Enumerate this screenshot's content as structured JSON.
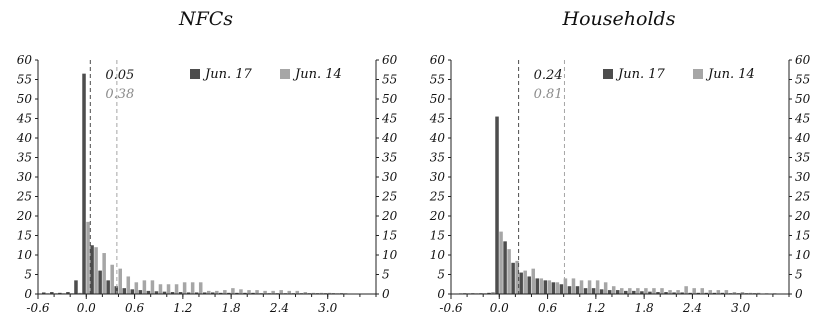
{
  "chart_data": [
    {
      "type": "bar",
      "title": "NFCs",
      "xlim": [
        -0.6,
        3.6
      ],
      "ylim": [
        0,
        60
      ],
      "xticks": [
        "-0.6",
        "0.0",
        "0.6",
        "1.2",
        "1.8",
        "2.4",
        "3.0"
      ],
      "yticks": [
        "0",
        "5",
        "10",
        "15",
        "20",
        "25",
        "30",
        "35",
        "40",
        "45",
        "50",
        "55",
        "60"
      ],
      "bin_width": 0.1,
      "colors": {
        "Jun. 17": "#4d4d4d",
        "Jun. 14": "#a6a6a6"
      },
      "legend_position": "top-right",
      "vlines": [
        {
          "x": 0.05,
          "label": "0.05",
          "series": "Jun. 17"
        },
        {
          "x": 0.38,
          "label": "0.38",
          "series": "Jun. 14"
        }
      ],
      "series": [
        {
          "name": "Jun. 17",
          "x": [
            -0.5,
            -0.4,
            -0.3,
            -0.2,
            -0.1,
            0.0,
            0.1,
            0.2,
            0.3,
            0.4,
            0.5,
            0.6,
            0.7,
            0.8,
            0.9,
            1.0,
            1.1,
            1.2,
            1.3,
            1.4,
            1.5,
            1.6,
            1.7,
            1.8,
            1.9,
            2.0,
            2.1,
            2.2,
            2.3,
            2.4,
            2.5,
            2.6,
            2.7,
            2.8,
            2.9,
            3.0,
            3.1,
            3.2,
            3.3,
            3.4
          ],
          "values": [
            0.4,
            0.5,
            0.3,
            0.5,
            3.5,
            56.5,
            12.5,
            6.0,
            3.5,
            2.0,
            1.5,
            1.2,
            1.0,
            0.8,
            0.7,
            0.6,
            0.5,
            0.5,
            0.4,
            0.4,
            0.4,
            0.4,
            0.3,
            0.3,
            0.3,
            0.3,
            0.3,
            0.2,
            0.2,
            0.2,
            0.2,
            0.2,
            0.2,
            0.2,
            0.2,
            0.2,
            0.2,
            0.2,
            0.1,
            0.1
          ]
        },
        {
          "name": "Jun. 14",
          "x": [
            -0.5,
            -0.4,
            -0.3,
            -0.2,
            -0.1,
            0.0,
            0.1,
            0.2,
            0.3,
            0.4,
            0.5,
            0.6,
            0.7,
            0.8,
            0.9,
            1.0,
            1.1,
            1.2,
            1.3,
            1.4,
            1.5,
            1.6,
            1.7,
            1.8,
            1.9,
            2.0,
            2.1,
            2.2,
            2.3,
            2.4,
            2.5,
            2.6,
            2.7,
            2.8,
            2.9,
            3.0,
            3.1,
            3.2,
            3.3,
            3.4
          ],
          "values": [
            0.2,
            0.2,
            0.2,
            0.2,
            0.3,
            18.5,
            12.0,
            10.5,
            7.5,
            6.5,
            4.5,
            3.0,
            3.5,
            3.5,
            2.5,
            2.5,
            2.5,
            3.0,
            3.0,
            3.0,
            0.8,
            0.8,
            1.0,
            1.5,
            1.2,
            1.0,
            1.0,
            0.8,
            0.8,
            1.0,
            0.8,
            0.8,
            0.5,
            0.3,
            0.3,
            0.3,
            0.2,
            0.2,
            0.1,
            0.1
          ]
        }
      ]
    },
    {
      "type": "bar",
      "title": "Households",
      "xlim": [
        -0.6,
        3.6
      ],
      "ylim": [
        0,
        60
      ],
      "xticks": [
        "-0.6",
        "0.0",
        "0.6",
        "1.2",
        "1.8",
        "2.4",
        "3.0"
      ],
      "yticks": [
        "0",
        "5",
        "10",
        "15",
        "20",
        "25",
        "30",
        "35",
        "40",
        "45",
        "50",
        "55",
        "60"
      ],
      "bin_width": 0.1,
      "colors": {
        "Jun. 17": "#4d4d4d",
        "Jun. 14": "#a6a6a6"
      },
      "legend_position": "top-right",
      "vlines": [
        {
          "x": 0.24,
          "label": "0.24",
          "series": "Jun. 17"
        },
        {
          "x": 0.81,
          "label": "0.81",
          "series": "Jun. 14"
        }
      ],
      "series": [
        {
          "name": "Jun. 17",
          "x": [
            -0.5,
            -0.4,
            -0.3,
            -0.2,
            -0.1,
            0.0,
            0.1,
            0.2,
            0.3,
            0.4,
            0.5,
            0.6,
            0.7,
            0.8,
            0.9,
            1.0,
            1.1,
            1.2,
            1.3,
            1.4,
            1.5,
            1.6,
            1.7,
            1.8,
            1.9,
            2.0,
            2.1,
            2.2,
            2.3,
            2.4,
            2.5,
            2.6,
            2.7,
            2.8,
            2.9,
            3.0,
            3.1,
            3.2,
            3.3,
            3.4
          ],
          "values": [
            0.1,
            0.2,
            0.2,
            0.2,
            0.3,
            45.5,
            13.5,
            8.0,
            5.5,
            4.5,
            4.0,
            3.5,
            3.0,
            2.5,
            2.0,
            2.0,
            1.5,
            1.5,
            1.2,
            1.0,
            1.0,
            0.8,
            0.8,
            0.7,
            0.6,
            0.5,
            0.5,
            0.4,
            0.4,
            0.3,
            0.3,
            0.3,
            0.3,
            0.3,
            0.2,
            0.2,
            0.2,
            0.2,
            0.1,
            0.1
          ]
        },
        {
          "name": "Jun. 14",
          "x": [
            -0.5,
            -0.4,
            -0.3,
            -0.2,
            -0.1,
            0.0,
            0.1,
            0.2,
            0.3,
            0.4,
            0.5,
            0.6,
            0.7,
            0.8,
            0.9,
            1.0,
            1.1,
            1.2,
            1.3,
            1.4,
            1.5,
            1.6,
            1.7,
            1.8,
            1.9,
            2.0,
            2.1,
            2.2,
            2.3,
            2.4,
            2.5,
            2.6,
            2.7,
            2.8,
            2.9,
            3.0,
            3.1,
            3.2,
            3.3,
            3.4
          ],
          "values": [
            0.2,
            0.2,
            0.2,
            0.2,
            0.5,
            16.0,
            11.5,
            8.5,
            6.0,
            6.5,
            4.0,
            3.5,
            3.0,
            4.0,
            4.0,
            3.5,
            3.5,
            3.5,
            3.0,
            2.0,
            1.5,
            1.5,
            1.5,
            1.5,
            1.5,
            1.5,
            1.0,
            1.0,
            2.0,
            1.5,
            1.5,
            1.0,
            1.0,
            1.0,
            0.5,
            0.5,
            0.3,
            0.3,
            0.2,
            0.2
          ]
        }
      ]
    }
  ]
}
